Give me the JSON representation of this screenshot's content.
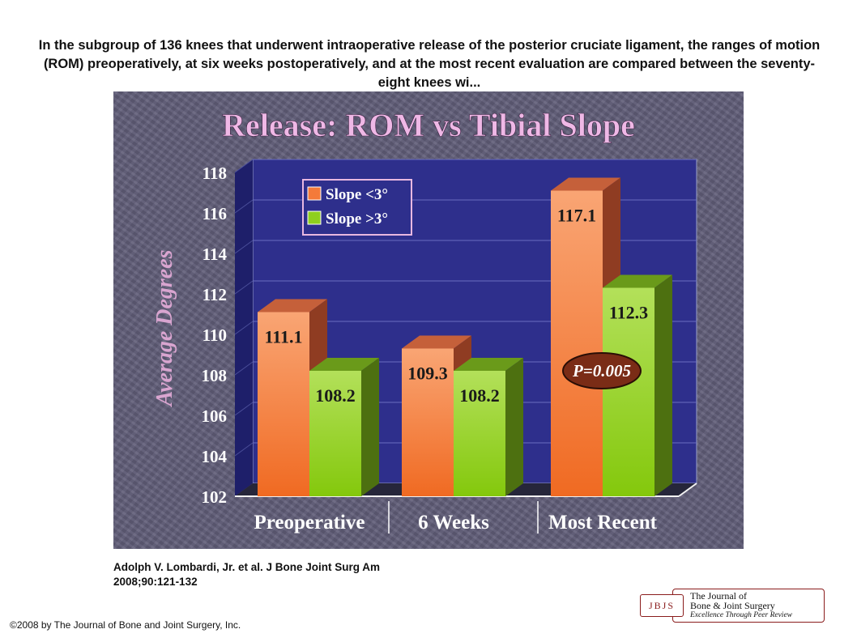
{
  "caption": "In the subgroup of 136 knees that underwent intraoperative release of the posterior cruciate ligament, the ranges of motion (ROM) preoperatively, at six weeks postoperatively, and at the most recent evaluation are compared between the seventy-eight knees wi...",
  "citation": {
    "line1": "Adolph V. Lombardi, Jr. et al. J Bone Joint Surg Am",
    "line2": "2008;90:121-132"
  },
  "copyright": "©2008 by The Journal of Bone and Joint Surgery, Inc.",
  "logo": {
    "abbrev": "JBJS",
    "line1": "The Journal of",
    "line2": "Bone & Joint Surgery",
    "tagline": "Excellence Through Peer Review",
    "color": "#8a1c1c"
  },
  "chart_data": {
    "type": "bar",
    "title": "Release: ROM vs Tibial Slope",
    "ylabel": "Average Degrees",
    "xlabel": "",
    "categories": [
      "Preoperative",
      "6 Weeks",
      "Most Recent"
    ],
    "series": [
      {
        "name": "Slope <3°",
        "values": [
          111.1,
          109.3,
          117.1
        ],
        "color": "#f47a3a"
      },
      {
        "name": "Slope >3°",
        "values": [
          108.2,
          108.2,
          112.3
        ],
        "color": "#8fcf1e"
      }
    ],
    "ylim": [
      102,
      118
    ],
    "yticks": [
      102,
      104,
      106,
      108,
      110,
      112,
      114,
      116,
      118
    ],
    "annotation": "P=0.005",
    "legend_position": "top-left",
    "grid": true,
    "colors": {
      "plot_background": "#2e2f8c",
      "title_color": "#efb8e6",
      "ylabel_color": "#d9a5d0",
      "annotation_fill": "#7a2c16"
    }
  }
}
